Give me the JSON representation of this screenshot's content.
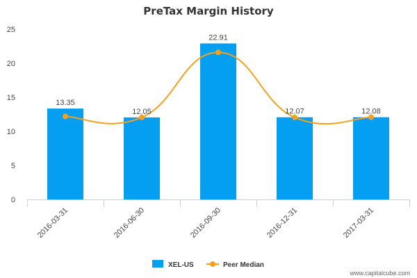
{
  "chart_data": {
    "type": "bar",
    "title": "PreTax Margin History",
    "categories": [
      "2016-03-31",
      "2016-06-30",
      "2016-09-30",
      "2016-12-31",
      "2017-03-31"
    ],
    "series": [
      {
        "name": "XEL-US",
        "type": "bar",
        "values": [
          13.35,
          12.05,
          22.91,
          12.07,
          12.08
        ],
        "color": "#049FF1",
        "data_labels": [
          "13.35",
          "12.05",
          "22.91",
          "12.07",
          "12.08"
        ]
      },
      {
        "name": "Peer Median",
        "type": "line",
        "values": [
          12.2,
          12.05,
          21.6,
          12.05,
          12.08
        ],
        "color": "#F7A11A"
      }
    ],
    "ylim": [
      0,
      25
    ],
    "yticks": [
      0,
      5,
      10,
      15,
      20,
      25
    ],
    "grid": false,
    "legend": "bottom-center"
  },
  "credit": "www.capitalcube.com"
}
